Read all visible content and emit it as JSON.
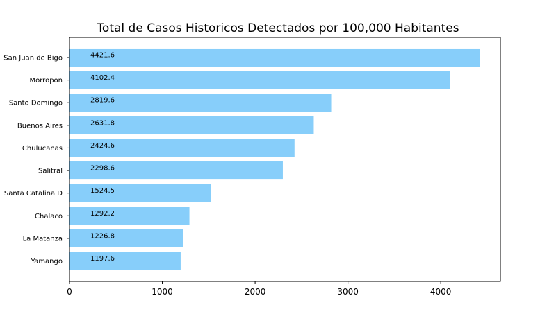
{
  "chart_data": {
    "type": "bar",
    "orientation": "horizontal",
    "title": "Total de Casos Historicos Detectados por 100,000 Habitantes",
    "xlabel": "",
    "ylabel": "",
    "categories": [
      "San Juan de Bigo",
      "Morropon",
      "Santo Domingo",
      "Buenos Aires",
      "Chulucanas",
      "Salitral",
      "Santa Catalina D",
      "Chalaco",
      "La Matanza",
      "Yamango"
    ],
    "values": [
      4421.6,
      4102.4,
      2819.6,
      2631.8,
      2424.6,
      2298.6,
      1524.5,
      1292.2,
      1226.8,
      1197.6
    ],
    "value_labels": [
      "4421.6",
      "4102.4",
      "2819.6",
      "2631.8",
      "2424.6",
      "2298.6",
      "1524.5",
      "1292.2",
      "1226.8",
      "1197.6"
    ],
    "xlim": [
      0,
      4642.7
    ],
    "xticks": [
      0,
      1000,
      2000,
      3000,
      4000
    ],
    "xtick_labels": [
      "0",
      "1000",
      "2000",
      "3000",
      "4000"
    ],
    "bar_color": "#87cefa",
    "grid": false,
    "legend": "none"
  }
}
